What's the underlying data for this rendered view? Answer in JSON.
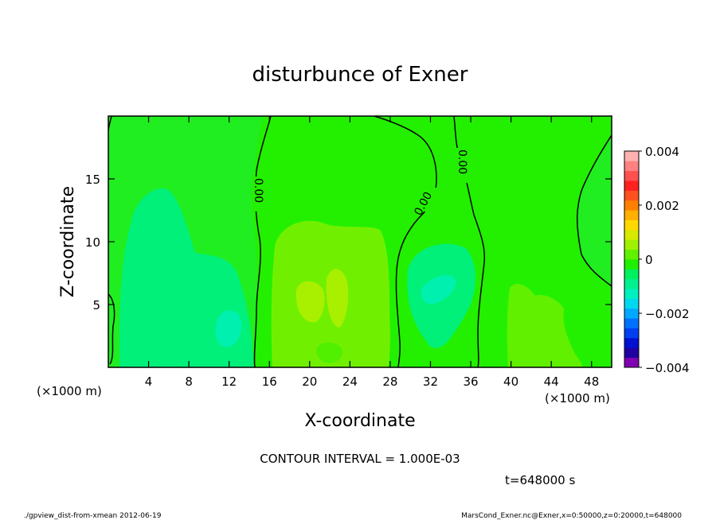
{
  "chart_data": {
    "type": "heatmap",
    "title": "disturbunce of Exner",
    "xlabel": "X-coordinate",
    "ylabel": "Z-coordinate",
    "x_unit": "(×1000 m)",
    "y_unit": "(×1000 m)",
    "xlim": [
      0,
      50
    ],
    "ylim": [
      0,
      20
    ],
    "x_ticks": [
      4,
      8,
      12,
      16,
      20,
      24,
      28,
      32,
      36,
      40,
      44,
      48
    ],
    "y_ticks": [
      5,
      10,
      15
    ],
    "colorbar": {
      "ticks": [
        "0.004",
        "0.002",
        "0",
        "−0.002",
        "−0.004"
      ],
      "tick_values": [
        0.004,
        0.002,
        0,
        -0.002,
        -0.004
      ],
      "range": [
        -0.004,
        0.004
      ],
      "colors": [
        "#7f00b0",
        "#2000a0",
        "#0010d0",
        "#0040f0",
        "#0070ff",
        "#00a8ff",
        "#00d8f0",
        "#00f0c0",
        "#00f090",
        "#00f060",
        "#20f000",
        "#60f000",
        "#a0f000",
        "#d8e800",
        "#ffd800",
        "#ffb000",
        "#ff8000",
        "#ff5020",
        "#ff2020",
        "#ff5050",
        "#ff8080",
        "#ffb0b0"
      ]
    },
    "contour_interval": "CONTOUR INTERVAL = 1.000E-03",
    "contour_labels": [
      "0.00",
      "0.00",
      "0.00"
    ],
    "regions": [
      {
        "type": "background",
        "value": 0.0003,
        "color": "#22f000"
      },
      {
        "type": "low",
        "center": [
          6,
          9
        ],
        "value": -0.0007,
        "color": "#00f07a"
      },
      {
        "type": "low",
        "center": [
          12,
          2
        ],
        "value": -0.0012,
        "color": "#00f0b0"
      },
      {
        "type": "low",
        "center": [
          33,
          6
        ],
        "value": -0.0012,
        "color": "#00f0b0"
      },
      {
        "type": "high",
        "center": [
          22,
          6
        ],
        "value": 0.0012,
        "color": "#a8f000"
      },
      {
        "type": "high",
        "center": [
          42,
          2
        ],
        "value": 0.0009,
        "color": "#78f000"
      }
    ]
  },
  "annotations": {
    "time": "t=648000 s",
    "script": "./gpview_dist-from-xmean  2012-06-19",
    "source": "MarsCond_Exner.nc@Exner,x=0:50000,z=0:20000,t=648000"
  }
}
